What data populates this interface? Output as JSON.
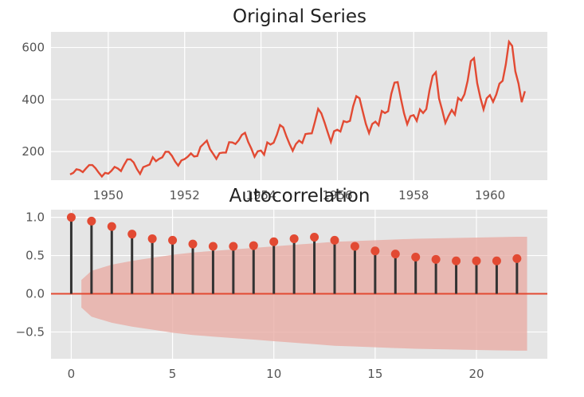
{
  "colors": {
    "line": "#e24a33",
    "stem": "#333333",
    "marker": "#e24a33",
    "band": "#e8a8a0",
    "panel": "#e5e5e5",
    "grid": "#ffffff"
  },
  "chart_data": [
    {
      "type": "line",
      "title": "Original Series",
      "xlabel": "",
      "ylabel": "",
      "grid": true,
      "xlim": [
        1948.5,
        1961.5
      ],
      "ylim": [
        90,
        660
      ],
      "xticks": [
        1950,
        1952,
        1954,
        1956,
        1958,
        1960
      ],
      "xtick_labels": [
        "1950",
        "1952",
        "1954",
        "1956",
        "1958",
        "1960"
      ],
      "yticks": [
        200,
        400,
        600
      ],
      "ytick_labels": [
        "200",
        "400",
        "600"
      ],
      "series": [
        {
          "start": 1949.0,
          "step_years": 0.0833,
          "values": [
            112,
            118,
            132,
            129,
            121,
            135,
            148,
            148,
            136,
            119,
            104,
            118,
            115,
            126,
            141,
            135,
            125,
            149,
            170,
            170,
            158,
            133,
            114,
            140,
            145,
            150,
            178,
            163,
            172,
            178,
            199,
            199,
            184,
            162,
            146,
            166,
            171,
            180,
            193,
            181,
            183,
            218,
            230,
            242,
            209,
            191,
            172,
            194,
            196,
            196,
            236,
            235,
            229,
            243,
            264,
            272,
            237,
            211,
            180,
            201,
            204,
            188,
            235,
            227,
            234,
            264,
            302,
            293,
            259,
            229,
            203,
            229,
            242,
            233,
            267,
            269,
            270,
            315,
            364,
            347,
            312,
            274,
            237,
            278,
            284,
            277,
            317,
            313,
            318,
            374,
            413,
            405,
            355,
            306,
            271,
            306,
            315,
            301,
            356,
            348,
            355,
            422,
            465,
            467,
            404,
            347,
            305,
            336,
            340,
            318,
            362,
            348,
            363,
            435,
            491,
            505,
            404,
            359,
            310,
            337,
            360,
            342,
            406,
            396,
            420,
            472,
            548,
            559,
            463,
            407,
            362,
            405,
            417,
            391,
            419,
            461,
            472,
            535,
            622,
            606,
            508,
            461,
            390,
            432
          ]
        }
      ]
    },
    {
      "type": "stem",
      "title": "Autocorrelation",
      "xlabel": "",
      "ylabel": "",
      "grid": true,
      "xlim": [
        -1,
        23.5
      ],
      "ylim": [
        -0.85,
        1.1
      ],
      "xticks": [
        0,
        5,
        10,
        15,
        20
      ],
      "xtick_labels": [
        "0",
        "5",
        "10",
        "15",
        "20"
      ],
      "yticks": [
        1.0,
        0.5,
        0.0,
        -0.5
      ],
      "ytick_labels": [
        "1.0",
        "0.5",
        "0.0",
        "−0.5"
      ],
      "lags": [
        0,
        1,
        2,
        3,
        4,
        5,
        6,
        7,
        8,
        9,
        10,
        11,
        12,
        13,
        14,
        15,
        16,
        17,
        18,
        19,
        20,
        21,
        22
      ],
      "values": [
        1.0,
        0.95,
        0.88,
        0.78,
        0.72,
        0.7,
        0.65,
        0.62,
        0.62,
        0.63,
        0.68,
        0.72,
        0.74,
        0.7,
        0.62,
        0.56,
        0.52,
        0.48,
        0.45,
        0.43,
        0.43,
        0.43,
        0.46
      ],
      "confidence_band": [
        0.18,
        0.3,
        0.38,
        0.43,
        0.47,
        0.51,
        0.54,
        0.56,
        0.58,
        0.6,
        0.62,
        0.64,
        0.66,
        0.68,
        0.69,
        0.7,
        0.71,
        0.72,
        0.725,
        0.73,
        0.735,
        0.74,
        0.745
      ]
    }
  ]
}
